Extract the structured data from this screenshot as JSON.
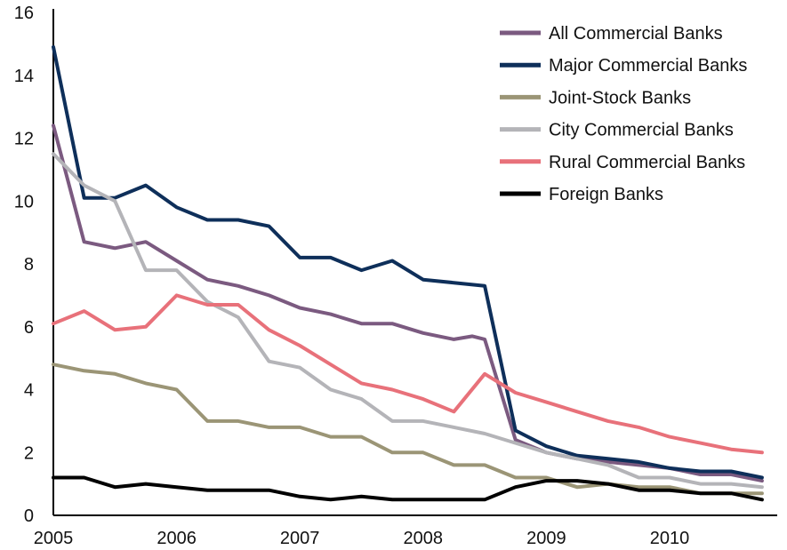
{
  "chart_data": {
    "type": "line",
    "title": "",
    "xlabel": "",
    "ylabel": "",
    "ylim": [
      0,
      16
    ],
    "yticks": [
      "0",
      "2",
      "4",
      "6",
      "8",
      "10",
      "12",
      "14",
      "16"
    ],
    "xlim": [
      2005,
      2010.83
    ],
    "xticks": [
      "2005",
      "2006",
      "2007",
      "2008",
      "2009",
      "2010"
    ],
    "grid": false,
    "legend_position": "top-right",
    "series": [
      {
        "name": "All Commercial Banks",
        "color": "#7b5a80",
        "x": [
          2005.0,
          2005.25,
          2005.5,
          2005.75,
          2006.0,
          2006.25,
          2006.5,
          2006.75,
          2007.0,
          2007.25,
          2007.5,
          2007.75,
          2008.0,
          2008.25,
          2008.4,
          2008.5,
          2008.75,
          2009.0,
          2009.25,
          2009.5,
          2009.75,
          2010.0,
          2010.25,
          2010.5,
          2010.75
        ],
        "y": [
          12.4,
          8.7,
          8.5,
          8.7,
          8.1,
          7.5,
          7.3,
          7.0,
          6.6,
          6.4,
          6.1,
          6.1,
          5.8,
          5.6,
          5.7,
          5.6,
          2.4,
          2.0,
          1.8,
          1.7,
          1.6,
          1.5,
          1.3,
          1.3,
          1.1
        ]
      },
      {
        "name": "Major Commercial Banks",
        "color": "#0e2f5a",
        "x": [
          2005.0,
          2005.25,
          2005.5,
          2005.75,
          2006.0,
          2006.25,
          2006.5,
          2006.75,
          2007.0,
          2007.25,
          2007.5,
          2007.75,
          2008.0,
          2008.25,
          2008.5,
          2008.75,
          2009.0,
          2009.25,
          2009.5,
          2009.75,
          2010.0,
          2010.25,
          2010.5,
          2010.75
        ],
        "y": [
          14.9,
          10.1,
          10.1,
          10.5,
          9.8,
          9.4,
          9.4,
          9.2,
          8.2,
          8.2,
          7.8,
          8.1,
          7.5,
          7.4,
          7.3,
          2.7,
          2.2,
          1.9,
          1.8,
          1.7,
          1.5,
          1.4,
          1.4,
          1.2
        ]
      },
      {
        "name": "Joint-Stock Banks",
        "color": "#9b9576",
        "x": [
          2005.0,
          2005.25,
          2005.5,
          2005.75,
          2006.0,
          2006.25,
          2006.5,
          2006.75,
          2007.0,
          2007.25,
          2007.5,
          2007.75,
          2008.0,
          2008.25,
          2008.5,
          2008.75,
          2009.0,
          2009.25,
          2009.5,
          2009.75,
          2010.0,
          2010.25,
          2010.5,
          2010.75
        ],
        "y": [
          4.8,
          4.6,
          4.5,
          4.2,
          4.0,
          3.0,
          3.0,
          2.8,
          2.8,
          2.5,
          2.5,
          2.0,
          2.0,
          1.6,
          1.6,
          1.2,
          1.2,
          0.9,
          1.0,
          0.9,
          0.9,
          0.7,
          0.7,
          0.7
        ]
      },
      {
        "name": "City Commercial Banks",
        "color": "#b4b4b8",
        "x": [
          2005.0,
          2005.25,
          2005.5,
          2005.75,
          2006.0,
          2006.25,
          2006.5,
          2006.75,
          2007.0,
          2007.25,
          2007.5,
          2007.75,
          2008.0,
          2008.25,
          2008.5,
          2008.75,
          2009.0,
          2009.25,
          2009.5,
          2009.75,
          2010.0,
          2010.25,
          2010.5,
          2010.75
        ],
        "y": [
          11.5,
          10.5,
          10.0,
          7.8,
          7.8,
          6.8,
          6.3,
          4.9,
          4.7,
          4.0,
          3.7,
          3.0,
          3.0,
          2.8,
          2.6,
          2.3,
          2.0,
          1.8,
          1.6,
          1.2,
          1.2,
          1.0,
          1.0,
          0.9
        ]
      },
      {
        "name": "Rural Commercial Banks",
        "color": "#e8717a",
        "x": [
          2005.0,
          2005.25,
          2005.5,
          2005.75,
          2006.0,
          2006.25,
          2006.5,
          2006.75,
          2007.0,
          2007.25,
          2007.5,
          2007.75,
          2008.0,
          2008.25,
          2008.5,
          2008.75,
          2009.0,
          2009.25,
          2009.5,
          2009.75,
          2010.0,
          2010.25,
          2010.5,
          2010.75
        ],
        "y": [
          6.1,
          6.5,
          5.9,
          6.0,
          7.0,
          6.7,
          6.7,
          5.9,
          5.4,
          4.8,
          4.2,
          4.0,
          3.7,
          3.3,
          4.5,
          3.9,
          3.6,
          3.3,
          3.0,
          2.8,
          2.5,
          2.3,
          2.1,
          2.0
        ]
      },
      {
        "name": "Foreign Banks",
        "color": "#000000",
        "x": [
          2005.0,
          2005.25,
          2005.5,
          2005.75,
          2006.0,
          2006.25,
          2006.5,
          2006.75,
          2007.0,
          2007.25,
          2007.5,
          2007.75,
          2008.0,
          2008.25,
          2008.5,
          2008.75,
          2009.0,
          2009.25,
          2009.5,
          2009.75,
          2010.0,
          2010.25,
          2010.5,
          2010.75
        ],
        "y": [
          1.2,
          1.2,
          0.9,
          1.0,
          0.9,
          0.8,
          0.8,
          0.8,
          0.6,
          0.5,
          0.6,
          0.5,
          0.5,
          0.5,
          0.5,
          0.9,
          1.1,
          1.1,
          1.0,
          0.8,
          0.8,
          0.7,
          0.7,
          0.5
        ]
      }
    ]
  }
}
